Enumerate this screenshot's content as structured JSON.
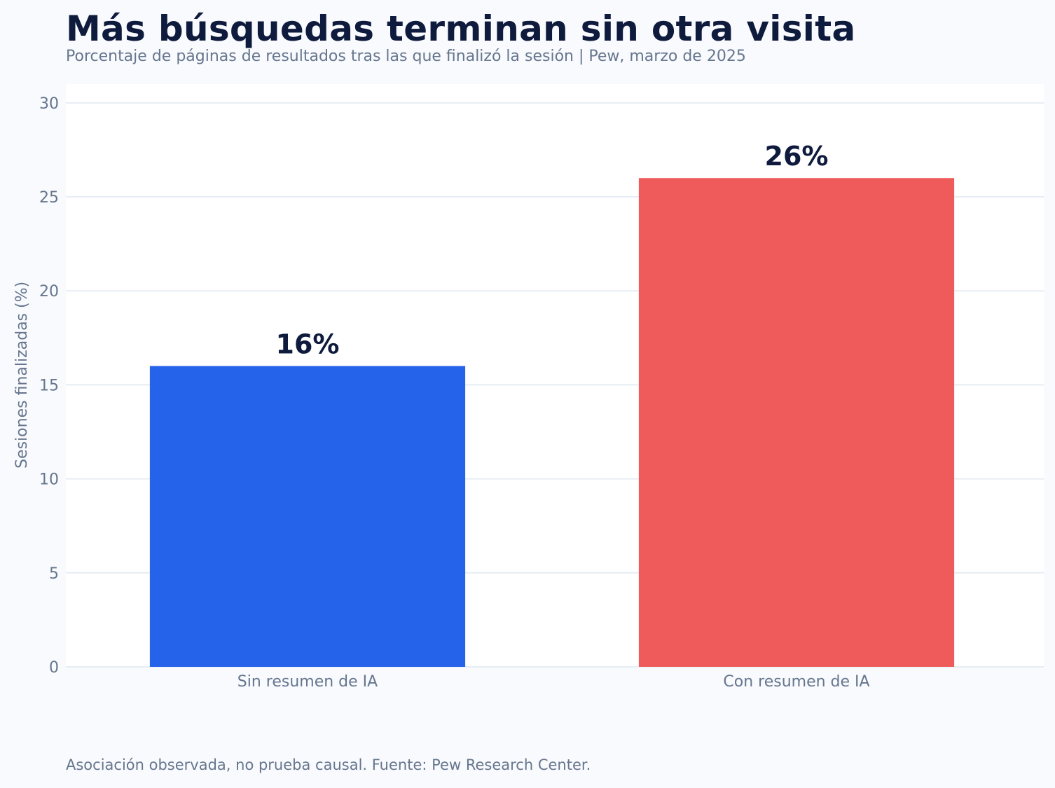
{
  "title": "Más búsquedas terminan sin otra visita",
  "subtitle": "Porcentaje de páginas de resultados tras las que finalizó la sesión | Pew, marzo de 2025",
  "footnote": "Asociación observada, no prueba causal. Fuente: Pew Research Center.",
  "colors": {
    "background": "#f8fafd",
    "plot_background": "#ffffff",
    "grid": "#e6edf4",
    "title": "#0f1b3d",
    "muted_text": "#66768e",
    "bar_sin": "#2563eb",
    "bar_con": "#ef5b5b"
  },
  "chart_data": {
    "type": "bar",
    "categories": [
      "Sin resumen de IA",
      "Con resumen de IA"
    ],
    "values": [
      16,
      26
    ],
    "value_labels": [
      "16%",
      "26%"
    ],
    "bar_colors": [
      "#2563eb",
      "#ef5b5b"
    ],
    "title": "Más búsquedas terminan sin otra visita",
    "subtitle": "Porcentaje de páginas de resultados tras las que finalizó la sesión | Pew, marzo de 2025",
    "xlabel": "",
    "ylabel": "Sesiones finalizadas (%)",
    "ylim": [
      0,
      31
    ],
    "yticks": [
      0,
      5,
      10,
      15,
      20,
      25,
      30
    ],
    "grid": true,
    "legend": "none"
  }
}
